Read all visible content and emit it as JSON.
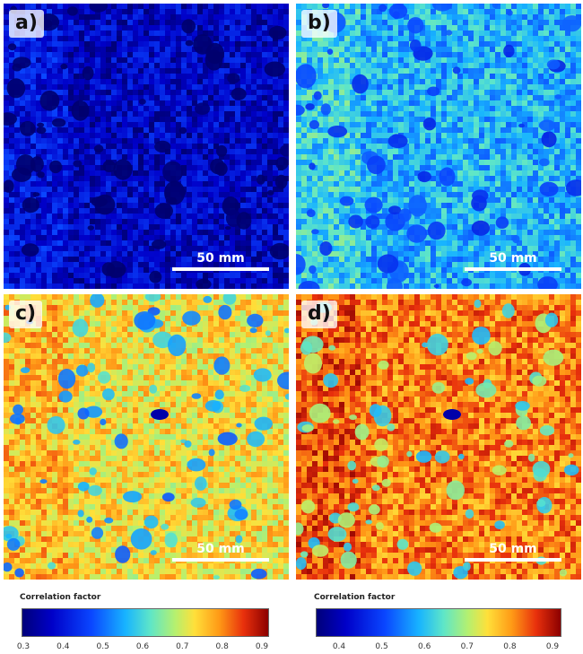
{
  "panels": [
    {
      "id": "a",
      "label": "a)",
      "scale": "50 mm",
      "level": 0.12,
      "palette": "low"
    },
    {
      "id": "b",
      "label": "b)",
      "scale": "50 mm",
      "level": 0.42,
      "palette": "mid"
    },
    {
      "id": "c",
      "label": "c)",
      "scale": "50 mm",
      "level": 0.7,
      "palette": "high"
    },
    {
      "id": "d",
      "label": "d)",
      "scale": "50 mm",
      "level": 0.82,
      "palette": "veryhigh"
    }
  ],
  "colorbars": {
    "left": {
      "title": "Correlation factor",
      "ticks": [
        "0.3",
        "0.4",
        "0.5",
        "0.6",
        "0.7",
        "0.8",
        "0.9"
      ]
    },
    "right": {
      "title": "Correlation factor",
      "ticks": [
        "0.4",
        "0.5",
        "0.6",
        "0.7",
        "0.8",
        "0.9"
      ]
    }
  },
  "colors": {
    "deep_blue": "#00009a",
    "blue": "#0a46ff",
    "cyan": "#18b4ff",
    "green": "#7ee68c",
    "yellow": "#ffd23a",
    "orange": "#ff8c1a",
    "red": "#d8200a",
    "dark_red": "#8c0000"
  }
}
